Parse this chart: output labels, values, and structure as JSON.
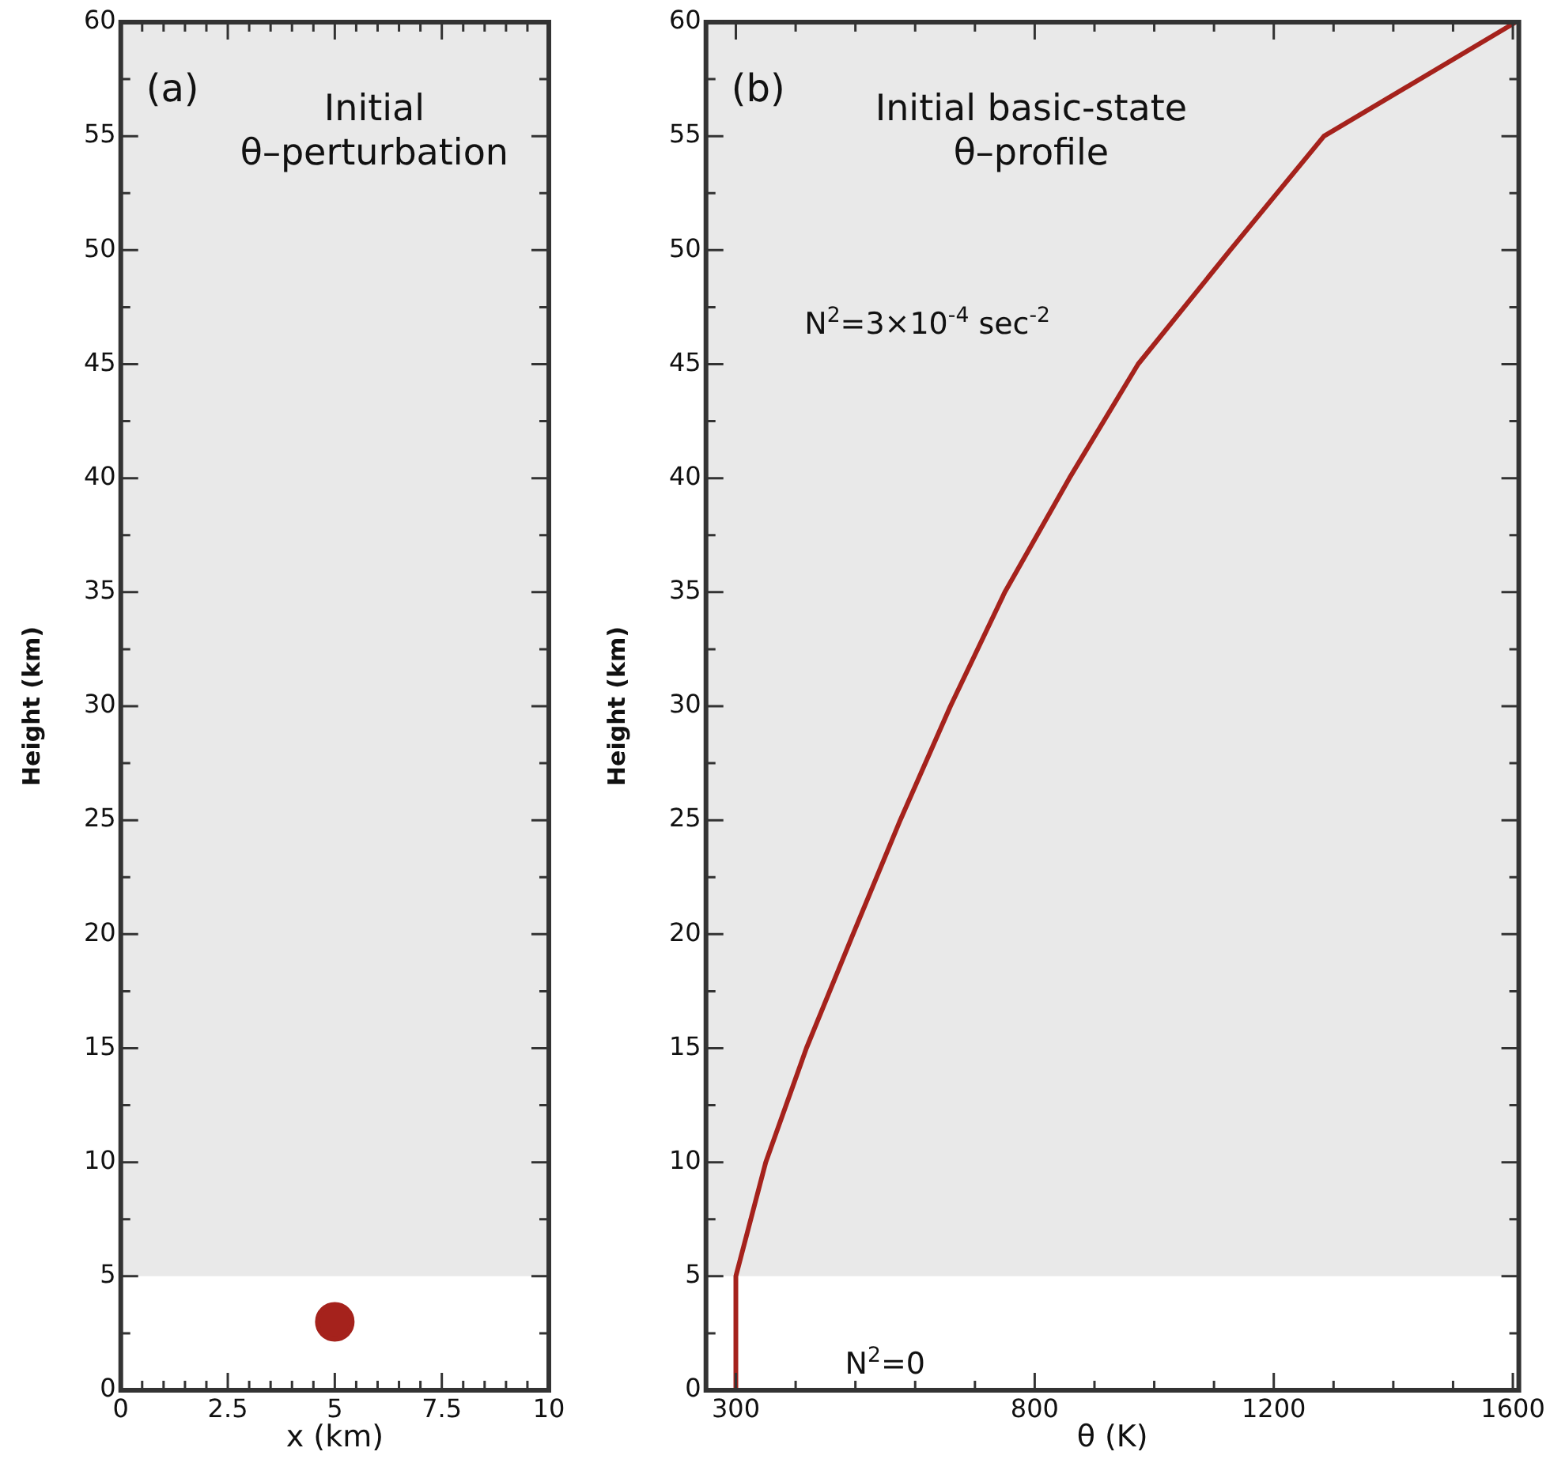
{
  "chart_data": [
    {
      "type": "scatter",
      "title": "Initial θ–perturbation",
      "xlabel": "x (km)",
      "ylabel": "Height (km)",
      "annotations": [
        "(a)"
      ],
      "x": [
        5
      ],
      "series": [
        {
          "color": "#a5221c",
          "values": [
            3
          ]
        }
      ],
      "marker": "circle",
      "xlim": [
        0,
        10
      ],
      "xticks": [
        0,
        {
          "value": 0.5,
          "label": null
        },
        {
          "value": 1,
          "label": null
        },
        {
          "value": 1.5,
          "label": null
        },
        {
          "value": 2,
          "label": null
        },
        2.5,
        {
          "value": 3,
          "label": null
        },
        {
          "value": 3.5,
          "label": null
        },
        {
          "value": 4,
          "label": null
        },
        {
          "value": 4.5,
          "label": null
        },
        5,
        {
          "value": 5.5,
          "label": null
        },
        {
          "value": 6,
          "label": null
        },
        {
          "value": 6.5,
          "label": null
        },
        {
          "value": 7,
          "label": null
        },
        7.5,
        {
          "value": 8,
          "label": null
        },
        {
          "value": 8.5,
          "label": null
        },
        {
          "value": 9,
          "label": null
        },
        {
          "value": 9.5,
          "label": null
        },
        10
      ],
      "ylim": [
        0,
        60
      ],
      "yticks": [
        0,
        {
          "value": 2.5,
          "label": null
        },
        5,
        {
          "value": 7.5,
          "label": null
        },
        10,
        {
          "value": 12.5,
          "label": null
        },
        15,
        {
          "value": 17.5,
          "label": null
        },
        20,
        {
          "value": 22.5,
          "label": null
        },
        25,
        {
          "value": 27.5,
          "label": null
        },
        30,
        {
          "value": 32.5,
          "label": null
        },
        35,
        {
          "value": 37.5,
          "label": null
        },
        40,
        {
          "value": 42.5,
          "label": null
        },
        45,
        {
          "value": 47.5,
          "label": null
        },
        50,
        {
          "value": 52.5,
          "label": null
        },
        55,
        {
          "value": 57.5,
          "label": null
        },
        60
      ],
      "bands": [
        {
          "axis": "y",
          "from": 5,
          "to": 60,
          "color": "#e9e9e9"
        }
      ],
      "legend": false,
      "grid": false
    },
    {
      "type": "line",
      "title": "Initial basic-state θ–profile",
      "xlabel": "θ (K)",
      "ylabel": "Height (km)",
      "annotations": [
        "(b)",
        "N$^{2}$=3×10$^{-4}$ sec$^{-2}$",
        "N$^{2}$=0"
      ],
      "series": [
        {
          "color": "#a5221c",
          "x": [
            300,
            300,
            350,
            418,
            496,
            575,
            659,
            750,
            858,
            973,
            1127,
            1284,
            1605
          ],
          "values": [
            0,
            5,
            10,
            15,
            20,
            25,
            30,
            35,
            40,
            45,
            50,
            55,
            60
          ]
        }
      ],
      "marker": "none",
      "line_style": "solid",
      "xlim": [
        250,
        1610
      ],
      "xticks": [
        300,
        {
          "value": 400,
          "label": null
        },
        {
          "value": 500,
          "label": null
        },
        {
          "value": 600,
          "label": null
        },
        {
          "value": 700,
          "label": null
        },
        800,
        {
          "value": 900,
          "label": null
        },
        {
          "value": 1000,
          "label": null
        },
        {
          "value": 1100,
          "label": null
        },
        1200,
        {
          "value": 1300,
          "label": null
        },
        {
          "value": 1400,
          "label": null
        },
        {
          "value": 1500,
          "label": null
        },
        1600
      ],
      "ylim": [
        0,
        60
      ],
      "yticks": [
        0,
        {
          "value": 2.5,
          "label": null
        },
        5,
        {
          "value": 7.5,
          "label": null
        },
        10,
        {
          "value": 12.5,
          "label": null
        },
        15,
        {
          "value": 17.5,
          "label": null
        },
        20,
        {
          "value": 22.5,
          "label": null
        },
        25,
        {
          "value": 27.5,
          "label": null
        },
        30,
        {
          "value": 32.5,
          "label": null
        },
        35,
        {
          "value": 37.5,
          "label": null
        },
        40,
        {
          "value": 42.5,
          "label": null
        },
        45,
        {
          "value": 47.5,
          "label": null
        },
        50,
        {
          "value": 52.5,
          "label": null
        },
        55,
        {
          "value": 57.5,
          "label": null
        },
        60
      ],
      "bands": [
        {
          "axis": "y",
          "from": 5,
          "to": 60,
          "color": "#e9e9e9"
        }
      ],
      "legend": false,
      "grid": false
    }
  ]
}
